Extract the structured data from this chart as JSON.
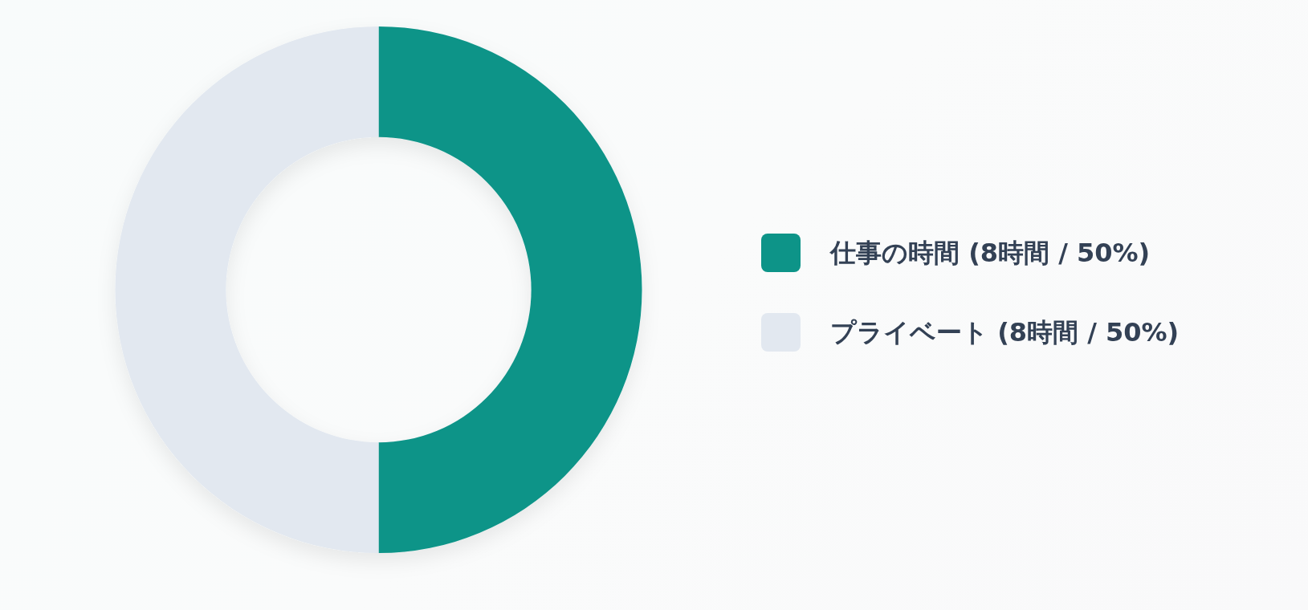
{
  "chart_data": {
    "type": "donut",
    "categories": [
      "仕事の時間 (8時間 / 50%)",
      "プライベート (8時間 / 50%)"
    ],
    "values": [
      8,
      8
    ],
    "colors": [
      "#0d9488",
      "#e2e8f0"
    ],
    "legend": "right"
  }
}
